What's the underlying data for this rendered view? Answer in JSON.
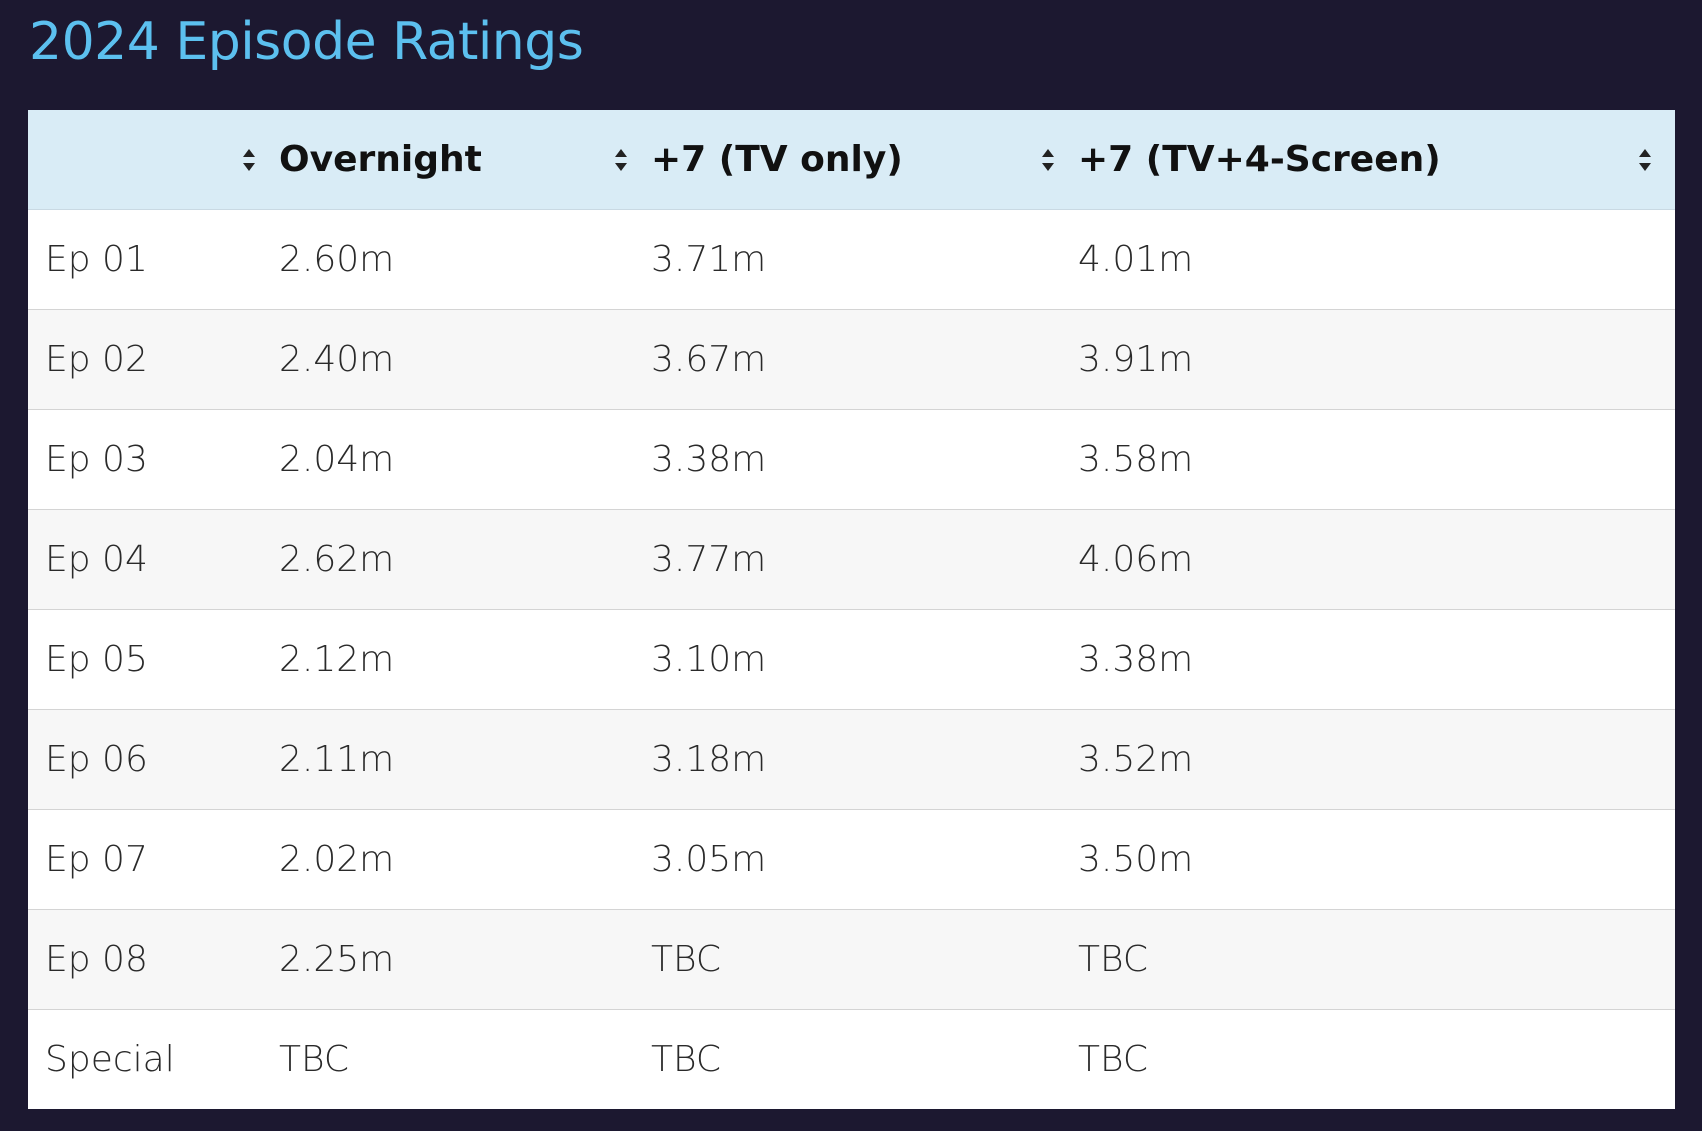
{
  "page": {
    "title": "2024 Episode Ratings"
  },
  "table": {
    "columns": [
      {
        "label": "",
        "sort_icon": "sort-updown-icon"
      },
      {
        "label": "Overnight",
        "sort_icon": "sort-updown-icon"
      },
      {
        "label": "+7 (TV only)",
        "sort_icon": "sort-updown-icon"
      },
      {
        "label": "+7 (TV+4-Screen)",
        "sort_icon": "sort-updown-icon"
      }
    ],
    "rows": [
      [
        "Ep 01",
        "2.60m",
        "3.71m",
        "4.01m"
      ],
      [
        "Ep 02",
        "2.40m",
        "3.67m",
        "3.91m"
      ],
      [
        "Ep 03",
        "2.04m",
        "3.38m",
        "3.58m"
      ],
      [
        "Ep 04",
        "2.62m",
        "3.77m",
        "4.06m"
      ],
      [
        "Ep 05",
        "2.12m",
        "3.10m",
        "3.38m"
      ],
      [
        "Ep 06",
        "2.11m",
        "3.18m",
        "3.52m"
      ],
      [
        "Ep 07",
        "2.02m",
        "3.05m",
        "3.50m"
      ],
      [
        "Ep 08",
        "2.25m",
        "TBC",
        "TBC"
      ],
      [
        "Special",
        "TBC",
        "TBC",
        "TBC"
      ]
    ]
  },
  "colors": {
    "background": "#1c1830",
    "title": "#5cc0ef",
    "header_background": "#d9ecf6",
    "row_alt": "#f7f7f7",
    "row": "#ffffff"
  }
}
